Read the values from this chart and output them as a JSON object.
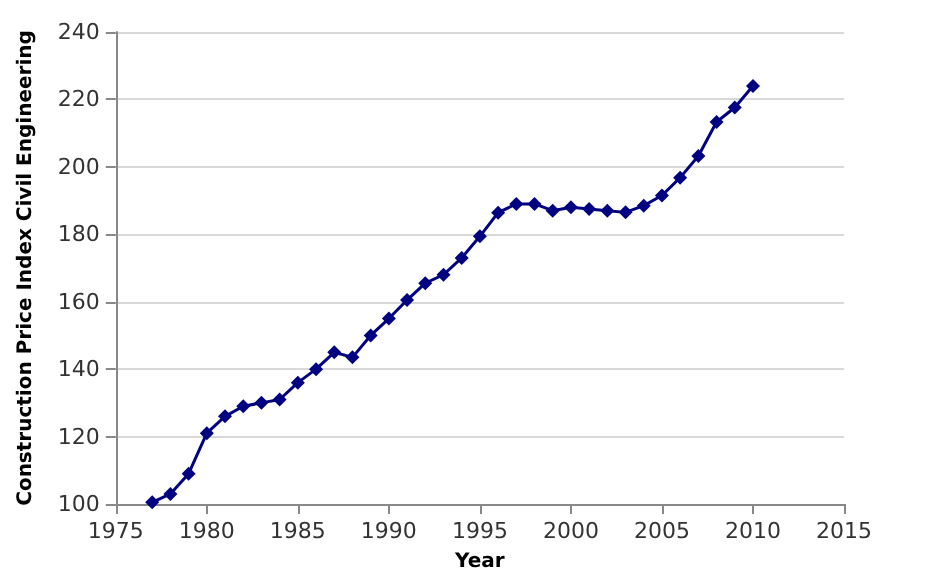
{
  "chart_data": {
    "type": "line",
    "xlabel": "Year",
    "ylabel": "Construction Price Index Civil Engineering",
    "x": [
      1977,
      1978,
      1979,
      1980,
      1981,
      1982,
      1983,
      1984,
      1985,
      1986,
      1987,
      1988,
      1989,
      1990,
      1991,
      1992,
      1993,
      1994,
      1995,
      1996,
      1997,
      1998,
      1999,
      2000,
      2001,
      2002,
      2003,
      2004,
      2005,
      2006,
      2007,
      2008,
      2009,
      2010
    ],
    "series": [
      {
        "color": "#000080",
        "values": [
          100.5,
          103,
          109,
          121,
          126,
          129,
          130,
          131,
          136,
          140,
          145,
          143.5,
          150,
          155,
          160.5,
          165.5,
          168,
          173,
          179.4,
          186.4,
          189,
          189,
          187,
          188,
          187.5,
          187,
          186.5,
          188.5,
          191.5,
          196.8,
          203.2,
          213.3,
          217.6,
          224
        ]
      }
    ],
    "xlim": [
      1975,
      2015
    ],
    "xticks": [
      1975,
      1980,
      1985,
      1990,
      1995,
      2000,
      2005,
      2010,
      2015
    ],
    "ylim": [
      100,
      240
    ],
    "yticks": [
      100,
      120,
      140,
      160,
      180,
      200,
      220,
      240
    ],
    "grid": "y",
    "marker": "diamond",
    "line_style": "solid"
  }
}
